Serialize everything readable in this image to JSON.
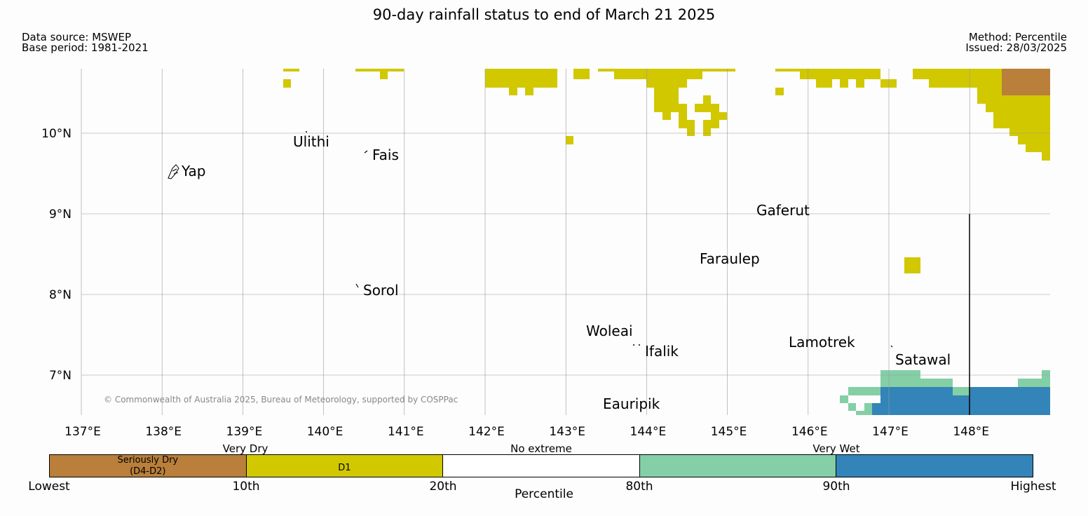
{
  "title": "90-day rainfall status to end of March 21 2025",
  "source": {
    "data_source": "Data source: MSWEP",
    "base_period": "Base period: 1981-2021"
  },
  "method": {
    "method": "Method: Percentile",
    "issued": "Issued: 28/03/2025"
  },
  "map": {
    "lon_range": [
      137,
      149
    ],
    "lat_range": [
      6.5,
      10.8
    ],
    "x_ticks": [
      "137°E",
      "138°E",
      "139°E",
      "140°E",
      "141°E",
      "142°E",
      "143°E",
      "144°E",
      "145°E",
      "146°E",
      "147°E",
      "148°E"
    ],
    "y_ticks": [
      "10°N",
      "9°N",
      "8°N",
      "7°N"
    ],
    "places": [
      "Yap",
      "Ulithi",
      "Fais",
      "Gaferut",
      "Faraulep",
      "Sorol",
      "Woleai",
      "Ifalik",
      "Lamotrek",
      "Satawal",
      "Eauripik"
    ],
    "copyright": "© Commonwealth of Australia 2025, Bureau of Meteorology, supported by COSPPac",
    "colors": {
      "seriously_dry": "#b97f3b",
      "very_dry": "#d1c800",
      "very_wet_light": "#84cfa6",
      "very_wet_dark": "#3384b8"
    }
  },
  "legend": {
    "groups": [
      "Very Dry",
      "No extreme",
      "Very Wet"
    ],
    "segments": [
      "Seriously Dry\n(D4-D2)",
      "D1",
      "",
      "",
      ""
    ],
    "percentiles": [
      "Lowest",
      "10th",
      "20th",
      "80th",
      "90th",
      "Highest"
    ],
    "axis_label": "Percentile"
  }
}
